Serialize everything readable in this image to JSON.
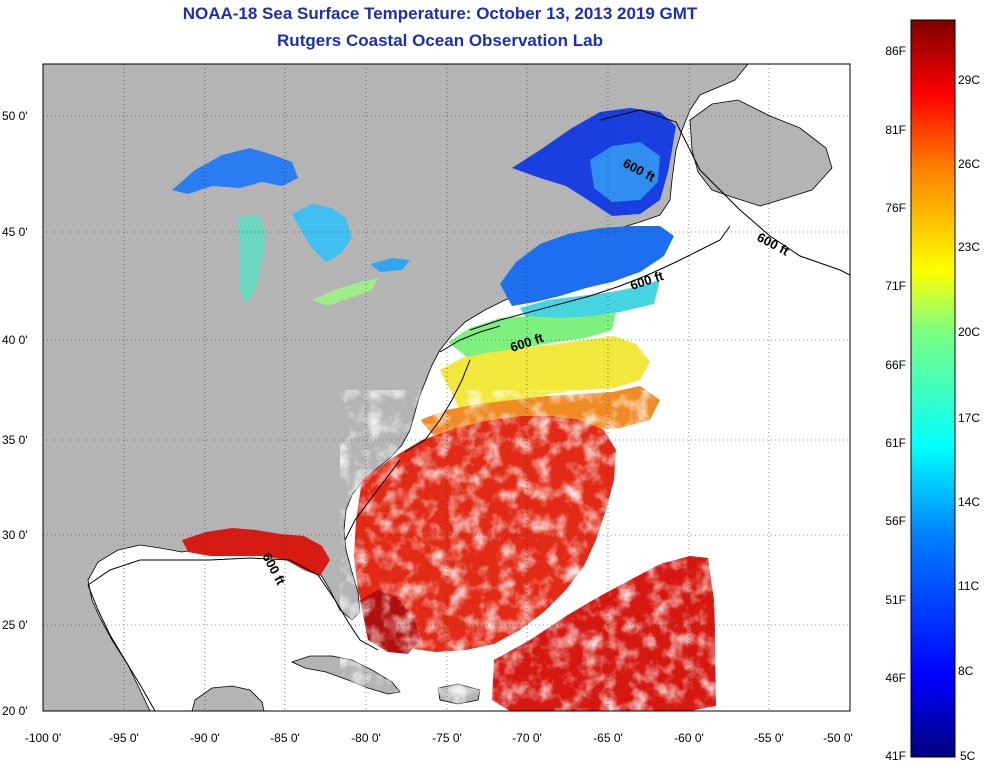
{
  "title": "NOAA-18 Sea Surface Temperature:  October 13, 2013 2019 GMT",
  "subtitle": "Rutgers Coastal Ocean Observation Lab",
  "lat_labels": [
    "50 0'",
    "45 0'",
    "40 0'",
    "35 0'",
    "30 0'",
    "25 0'",
    "20 0'"
  ],
  "lon_labels": [
    "-100 0'",
    "-95 0'",
    "-90 0'",
    "-85 0'",
    "-80 0'",
    "-75 0'",
    "-70 0'",
    "-65 0'",
    "-60 0'",
    "-55 0'",
    "-50 0'"
  ],
  "contour_label": "600 ft",
  "colorbar": {
    "fahrenheit": [
      "86F",
      "81F",
      "76F",
      "71F",
      "66F",
      "61F",
      "56F",
      "51F",
      "46F",
      "41F"
    ],
    "celsius": [
      "29C",
      "26C",
      "23C",
      "20C",
      "17C",
      "14C",
      "11C",
      "8C",
      "5C"
    ]
  },
  "colors": {
    "title": "#1a2fb4",
    "land": "#b4b4b4",
    "no_data": "#ffffff",
    "warm": "#d41212",
    "cold": "#0a2dd2"
  }
}
